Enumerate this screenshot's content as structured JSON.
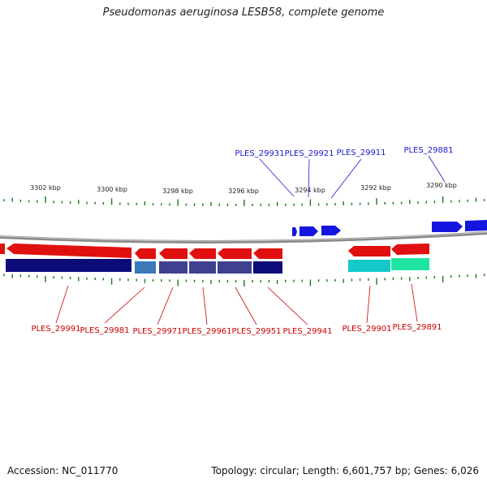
{
  "header": {
    "title": "Pseudomonas aeruginosa LESB58, complete genome"
  },
  "footer": {
    "accession": "Accession: NC_011770",
    "summary": "Topology: circular; Length: 6,601,757 bp; Genes: 6,026"
  },
  "scale": {
    "labels": [
      "3302 kbp",
      "3300 kbp",
      "3298 kbp",
      "3296 kbp",
      "3294 kbp",
      "3292 kbp",
      "3290 kbp"
    ]
  },
  "colors": {
    "backbone": "#8a8a8a",
    "forward_gene": "#1515e0",
    "reverse_gene": "#e01010",
    "tick": "#1a7a1a",
    "forward_label": "#1a1acc",
    "reverse_label": "#cc0000",
    "cds_navy": "#0c0c78",
    "cds_steel": "#3a78b8",
    "cds_slate": "#404090",
    "cds_cyan": "#14c8c8",
    "cds_green": "#1ee6a0"
  },
  "forward_genes": {
    "labels": [
      "PLES_29931",
      "PLES_29921",
      "PLES_29911",
      "PLES_29881"
    ]
  },
  "reverse_genes": {
    "labels": [
      "PLES_29991",
      "PLES_29981",
      "PLES_29971",
      "PLES_29961",
      "PLES_29951",
      "PLES_29941",
      "PLES_29901",
      "PLES_29891"
    ]
  }
}
